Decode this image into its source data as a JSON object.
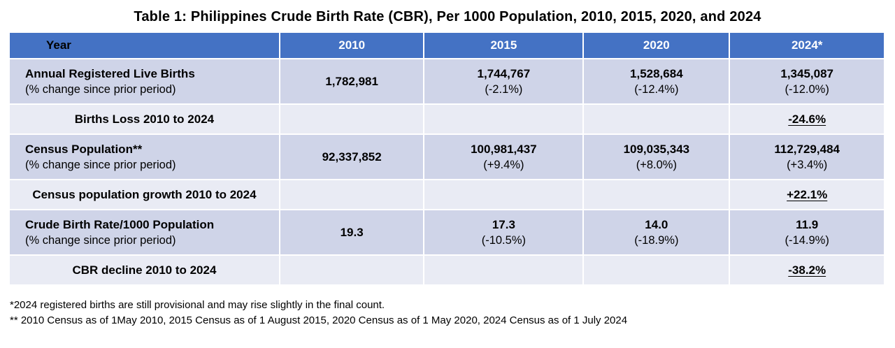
{
  "title": "Table 1: Philippines Crude Birth Rate (CBR), Per 1000 Population, 2010, 2015, 2020, and 2024",
  "table": {
    "header": {
      "year_label": "Year",
      "columns": [
        "2010",
        "2015",
        "2020",
        "2024*"
      ]
    },
    "rows": [
      {
        "type": "data",
        "label": "Annual Registered Live Births",
        "sublabel": "(% change since prior period)",
        "values": [
          {
            "value": "1,782,981"
          },
          {
            "value": "1,744,767",
            "change": "(-2.1%)"
          },
          {
            "value": "1,528,684",
            "change": "(-12.4%)"
          },
          {
            "value": "1,345,087",
            "change": "(-12.0%)"
          }
        ]
      },
      {
        "type": "summary",
        "label": "Births Loss 2010 to 2024",
        "value": "-24.6%"
      },
      {
        "type": "data",
        "label": "Census Population**",
        "sublabel": "(% change since prior period)",
        "values": [
          {
            "value": "92,337,852"
          },
          {
            "value": "100,981,437",
            "change": "(+9.4%)"
          },
          {
            "value": "109,035,343",
            "change": "(+8.0%)"
          },
          {
            "value": "112,729,484",
            "change": "(+3.4%)"
          }
        ]
      },
      {
        "type": "summary",
        "label": "Census population growth 2010 to 2024",
        "value": "+22.1%"
      },
      {
        "type": "data",
        "label": "Crude Birth Rate/1000 Population",
        "sublabel": "(% change since prior period)",
        "values": [
          {
            "value": "19.3"
          },
          {
            "value": "17.3",
            "change": "(-10.5%)"
          },
          {
            "value": "14.0",
            "change": "(-18.9%)"
          },
          {
            "value": "11.9",
            "change": "(-14.9%)"
          }
        ]
      },
      {
        "type": "summary",
        "label": "CBR decline 2010 to 2024",
        "value": "-38.2%"
      }
    ]
  },
  "footnotes": [
    "*2024 registered births are still provisional and may rise slightly in the final count.",
    "** 2010 Census as of 1May 2010, 2015 Census as of 1 August 2015, 2020 Census as of 1 May 2020, 2024 Census as of 1 July 2024"
  ],
  "colors": {
    "header_bg": "#4472C4",
    "header_year_text": "#000000",
    "header_col_text": "#FFFFFF",
    "data_row_bg": "#CFD4E8",
    "summary_row_bg": "#E9EBF4",
    "cell_border": "#FFFFFF",
    "text": "#000000"
  }
}
